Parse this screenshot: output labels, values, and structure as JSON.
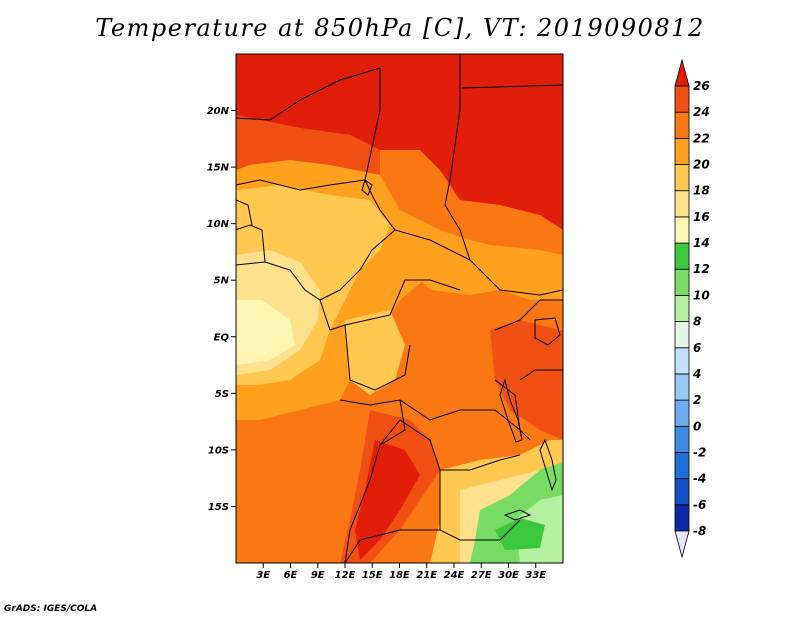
{
  "title": "Temperature at 850hPa [C], VT: 2019090812",
  "credit": "GrADS: IGES/COLA",
  "map": {
    "lon_range": [
      0,
      36
    ],
    "lat_range": [
      -20,
      25
    ],
    "lon_ticks": [
      {
        "value": 3,
        "label": "3E"
      },
      {
        "value": 6,
        "label": "6E"
      },
      {
        "value": 9,
        "label": "9E"
      },
      {
        "value": 12,
        "label": "12E"
      },
      {
        "value": 15,
        "label": "15E"
      },
      {
        "value": 18,
        "label": "18E"
      },
      {
        "value": 21,
        "label": "21E"
      },
      {
        "value": 24,
        "label": "24E"
      },
      {
        "value": 27,
        "label": "27E"
      },
      {
        "value": 30,
        "label": "30E"
      },
      {
        "value": 33,
        "label": "33E"
      }
    ],
    "lat_ticks": [
      {
        "value": 20,
        "label": "20N"
      },
      {
        "value": 15,
        "label": "15N"
      },
      {
        "value": 10,
        "label": "10N"
      },
      {
        "value": 5,
        "label": "5N"
      },
      {
        "value": 0,
        "label": "EQ"
      },
      {
        "value": -5,
        "label": "5S"
      },
      {
        "value": -10,
        "label": "10S"
      },
      {
        "value": -15,
        "label": "15S"
      }
    ]
  },
  "colorbar": {
    "levels": [
      "-8",
      "-6",
      "-4",
      "-2",
      "0",
      "2",
      "4",
      "6",
      "8",
      "10",
      "12",
      "14",
      "16",
      "18",
      "20",
      "22",
      "24",
      "26"
    ],
    "colors": [
      "#0a0a6e",
      "#0a2aa8",
      "#1450c8",
      "#1e6ed8",
      "#3c8ce6",
      "#6eaaf0",
      "#96c8f5",
      "#c3e1fa",
      "#e6f5ea",
      "#b4f0a0",
      "#78dc64",
      "#3cc83c",
      "#fff5b4",
      "#ffe08c",
      "#ffc850",
      "#ffa01e",
      "#fa7814",
      "#f05014",
      "#e11e0a"
    ],
    "under_color": "#e6e6fa",
    "over_color": "#e11e0a"
  }
}
